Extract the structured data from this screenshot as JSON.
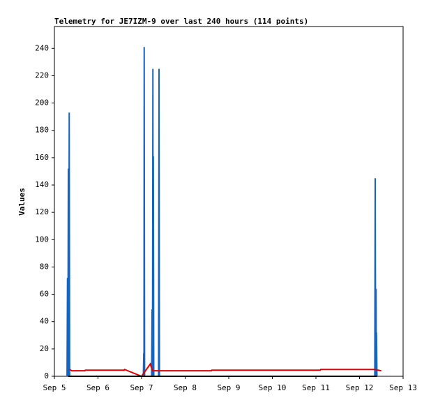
{
  "chart_data": {
    "type": "line",
    "title": "Telemetry for JE7IZM-9 over last 240 hours (114 points)",
    "y_label": "Values",
    "xlim": [
      5,
      13
    ],
    "xticks": [
      {
        "value": 5,
        "label": "Sep 5"
      },
      {
        "value": 6,
        "label": "Sep 6"
      },
      {
        "value": 7,
        "label": "Sep 7"
      },
      {
        "value": 8,
        "label": "Sep 8"
      },
      {
        "value": 9,
        "label": "Sep 9"
      },
      {
        "value": 10,
        "label": "Sep 10"
      },
      {
        "value": 11,
        "label": "Sep 11"
      },
      {
        "value": 12,
        "label": "Sep 12"
      },
      {
        "value": 13,
        "label": "Sep 13"
      }
    ],
    "ylim": [
      0,
      256
    ],
    "yticks": [
      0,
      20,
      40,
      60,
      80,
      100,
      120,
      140,
      160,
      180,
      200,
      220,
      240
    ],
    "series": [
      {
        "color": "#1565c0",
        "x": [
          5.29,
          5.3,
          5.31,
          5.32,
          5.33,
          5.34,
          5.35,
          7.04,
          7.05,
          7.055,
          7.06,
          7.07,
          7.23,
          7.24,
          7.25,
          7.26,
          7.265,
          7.27,
          7.28,
          7.39,
          7.4,
          7.41,
          12.35,
          12.36,
          12.37,
          12.38,
          12.385,
          12.39,
          12.4
        ],
        "values": [
          0,
          72,
          0,
          152,
          0,
          193,
          0,
          0,
          17,
          0,
          241,
          0,
          0,
          49,
          0,
          225,
          0,
          161,
          0,
          0,
          225,
          0,
          0,
          145,
          0,
          64,
          0,
          32,
          0
        ]
      },
      {
        "color": "#e00000",
        "x": [
          5.35,
          5.4,
          5.7,
          5.71,
          6.6,
          6.61,
          7.0,
          7.2,
          7.25,
          8.6,
          8.61,
          11.1,
          11.11,
          12.35,
          12.5
        ],
        "values": [
          5,
          4,
          4,
          4.5,
          4.5,
          5,
          0,
          9,
          4,
          4,
          4.5,
          4.5,
          5,
          5,
          4
        ]
      },
      {
        "color": "#000000",
        "x": [
          5.32,
          12.4
        ],
        "values": [
          0,
          0
        ]
      }
    ]
  }
}
